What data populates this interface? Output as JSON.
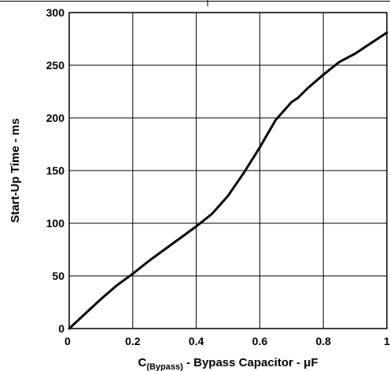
{
  "chart_data": {
    "type": "line",
    "xlabel_prefix": "C",
    "xlabel_subscript": "(Bypass)",
    "xlabel_rest": " - Bypass Capacitor - μF",
    "ylabel": "Start-Up Time - ms",
    "xlim": [
      0,
      1
    ],
    "ylim": [
      0,
      300
    ],
    "grid": true,
    "x_ticks": [
      0,
      0.2,
      0.4,
      0.6,
      0.8,
      1
    ],
    "x_tick_labels": [
      "0",
      "0.2",
      "0.4",
      "0.6",
      "0.8",
      "1"
    ],
    "y_ticks": [
      0,
      50,
      100,
      150,
      200,
      250,
      300
    ],
    "y_tick_labels": [
      "0",
      "50",
      "100",
      "150",
      "200",
      "250",
      "300"
    ],
    "series": [
      {
        "color": "#000000",
        "x": [
          0,
          0.05,
          0.1,
          0.15,
          0.2,
          0.25,
          0.3,
          0.35,
          0.4,
          0.45,
          0.5,
          0.55,
          0.6,
          0.65,
          0.7,
          0.72,
          0.75,
          0.8,
          0.85,
          0.9,
          0.95,
          1.0
        ],
        "y": [
          0,
          14,
          28,
          41,
          52,
          64,
          75,
          86,
          97,
          109,
          126,
          148,
          172,
          198,
          215,
          219,
          228,
          241,
          253,
          261,
          271,
          281
        ]
      }
    ]
  }
}
